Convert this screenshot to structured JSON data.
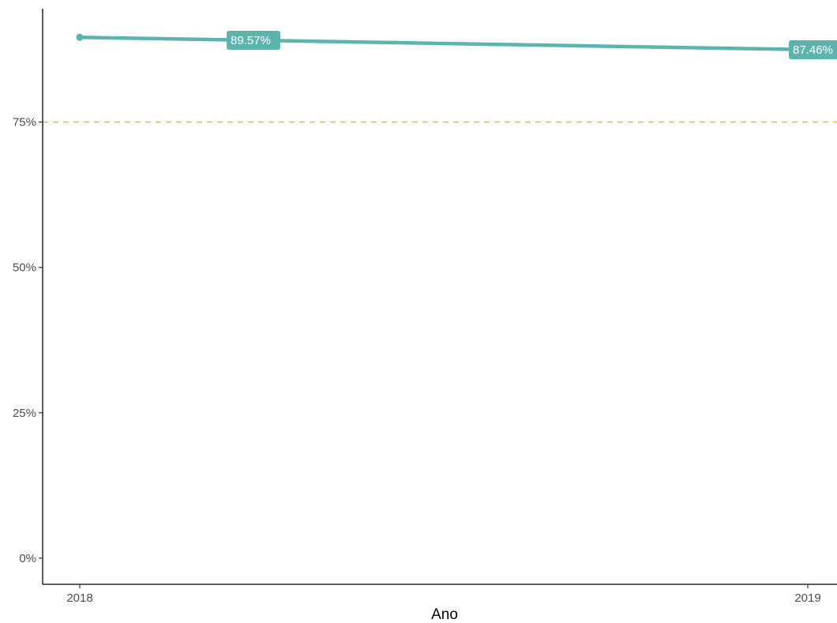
{
  "chart_data": {
    "type": "line",
    "title": "",
    "xlabel": "Ano",
    "ylabel": "",
    "x": [
      "2018",
      "2019"
    ],
    "series": [
      {
        "values": [
          89.57,
          87.46
        ],
        "labels": [
          "89.57%",
          "87.46%"
        ],
        "color": "#5bb5ad"
      }
    ],
    "reference_line": {
      "value": 75,
      "style": "dashed",
      "color": "#e8b96a"
    },
    "yticks": [
      0,
      25,
      50,
      75
    ],
    "ytick_labels": [
      "0%",
      "25%",
      "50%",
      "75%"
    ],
    "ylim": [
      -4.5,
      94.5
    ],
    "grid": false,
    "legend": "none"
  }
}
